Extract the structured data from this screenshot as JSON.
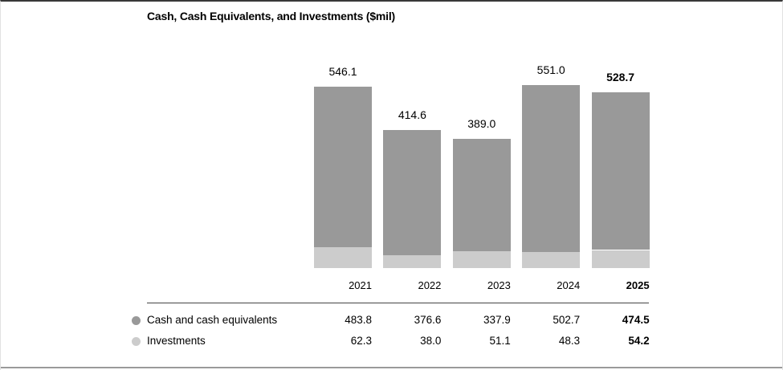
{
  "chart_data": {
    "type": "bar",
    "stacked": true,
    "title": "Cash, Cash Equivalents, and Investments ($mil)",
    "categories": [
      "2021",
      "2022",
      "2023",
      "2024",
      "2025"
    ],
    "series": [
      {
        "name": "Cash and cash equivalents",
        "color": "#999999",
        "values": [
          483.8,
          376.6,
          337.9,
          502.7,
          474.5
        ]
      },
      {
        "name": "Investments",
        "color": "#cccccc",
        "values": [
          62.3,
          38.0,
          51.1,
          48.3,
          54.2
        ]
      }
    ],
    "totals": [
      546.1,
      414.6,
      389.0,
      551.0,
      528.7
    ],
    "highlight_last_column": true,
    "legend_position": "bottom-table",
    "grid": false,
    "axes_shown": false
  },
  "colors": {
    "bar_cash": "#999999",
    "bar_investments": "#cccccc",
    "frame_top_border": "#383838",
    "frame_bottom_border": "#9a9a9a",
    "legend_divider": "#444444",
    "text": "#000000"
  }
}
